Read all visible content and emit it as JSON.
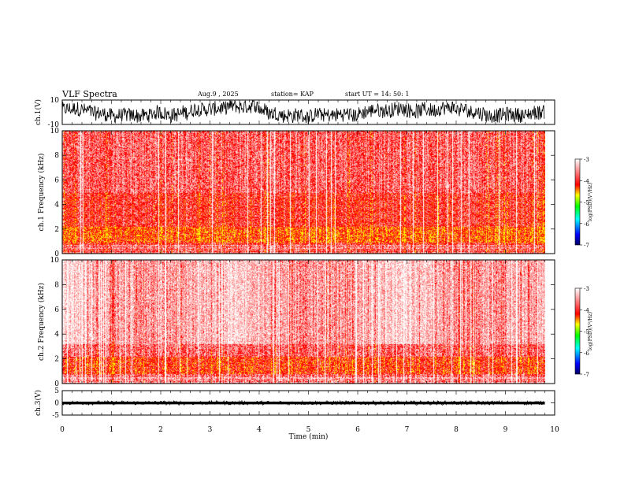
{
  "header": {
    "title": "VLF Spectra",
    "date": "Aug.9 , 2025",
    "station": "station= KAP",
    "start": "start UT = 14: 50: 1"
  },
  "chart_data": [
    {
      "type": "line",
      "name": "ch1-waveform",
      "ylabel": "ch.1(V)",
      "ylim": [
        -10,
        10
      ],
      "yticks": [
        "10",
        "-10"
      ],
      "xlim": [
        0,
        10
      ]
    },
    {
      "type": "heatmap",
      "name": "ch1-spectrogram",
      "ylabel": "ch.1 Frequency (kHz)",
      "ylim": [
        0,
        10
      ],
      "yticks": [
        "0",
        "2",
        "4",
        "6",
        "8",
        "10"
      ],
      "data_extent_min": 9.8,
      "colorbar": {
        "label": "log(PSD)(V²/Hz)",
        "ticks": [
          "-3",
          "-4",
          "-5",
          "-6",
          "-7"
        ],
        "range": [
          -7,
          -3
        ]
      }
    },
    {
      "type": "heatmap",
      "name": "ch2-spectrogram",
      "ylabel": "ch.2 Frequency (kHz)",
      "ylim": [
        0,
        10
      ],
      "yticks": [
        "0",
        "2",
        "4",
        "6",
        "8",
        "10"
      ],
      "data_extent_min": 9.8,
      "colorbar": {
        "label": "log(PSD)(V²/Hz)",
        "ticks": [
          "-3",
          "-4",
          "-5",
          "-6",
          "-7"
        ],
        "range": [
          -7,
          -3
        ]
      }
    },
    {
      "type": "line",
      "name": "ch3-waveform",
      "ylabel": "ch.3(V)",
      "ylim": [
        -5,
        5
      ],
      "yticks": [
        "5",
        "0",
        "-5"
      ],
      "xlim": [
        0,
        10
      ]
    }
  ],
  "xaxis": {
    "label": "Time (min)",
    "ticks": [
      "0",
      "1",
      "2",
      "3",
      "4",
      "5",
      "6",
      "7",
      "8",
      "9",
      "10"
    ]
  }
}
